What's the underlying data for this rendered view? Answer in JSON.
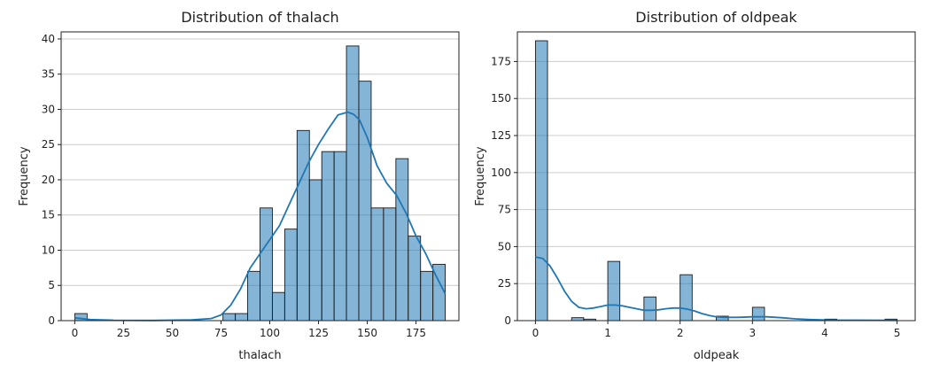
{
  "chart_data": [
    {
      "type": "bar",
      "title": "Distribution of thalach",
      "xlabel": "thalach",
      "ylabel": "Frequency",
      "xlim": [
        -7,
        197
      ],
      "ylim": [
        0,
        41
      ],
      "xticks": [
        0,
        25,
        50,
        75,
        100,
        125,
        150,
        175
      ],
      "yticks": [
        0,
        5,
        10,
        15,
        20,
        25,
        30,
        35,
        40
      ],
      "grid": "horizontal",
      "bin_edges": [
        0,
        6.33,
        12.67,
        19,
        25.33,
        31.67,
        38,
        44.33,
        50.67,
        57,
        63.33,
        69.67,
        76,
        82.33,
        88.67,
        95,
        101.33,
        107.67,
        114,
        120.33,
        126.67,
        133,
        139.33,
        145.67,
        152,
        158.33,
        164.67,
        171,
        177.33,
        183.67,
        190
      ],
      "values": [
        1,
        0,
        0,
        0,
        0,
        0,
        0,
        0,
        0,
        0,
        0,
        0,
        1,
        1,
        7,
        16,
        4,
        13,
        27,
        20,
        24,
        24,
        39,
        34,
        16,
        16,
        23,
        12,
        7,
        8
      ],
      "kde": {
        "x": [
          0,
          8,
          20,
          40,
          60,
          70,
          75,
          80,
          85,
          90,
          95,
          100,
          105,
          110,
          115,
          120,
          125,
          130,
          135,
          140,
          143,
          146,
          150,
          155,
          160,
          165,
          170,
          175,
          180,
          185,
          190
        ],
        "y": [
          0.4,
          0.15,
          0.05,
          0.03,
          0.1,
          0.3,
          0.8,
          2.2,
          4.5,
          7.5,
          9.5,
          11.5,
          13.5,
          16.5,
          19.5,
          22.5,
          25,
          27.2,
          29.2,
          29.6,
          29.3,
          28.5,
          26,
          22,
          19.5,
          17.8,
          15.2,
          12,
          9.5,
          6.5,
          3.8
        ]
      },
      "bar_color": "#1f77b4",
      "line_color": "#1f77b4"
    },
    {
      "type": "bar",
      "title": "Distribution of oldpeak",
      "xlabel": "oldpeak",
      "ylabel": "Frequency",
      "xlim": [
        -0.25,
        5.25
      ],
      "ylim": [
        0,
        195
      ],
      "xticks": [
        0,
        1,
        2,
        3,
        4,
        5
      ],
      "yticks": [
        0,
        25,
        50,
        75,
        100,
        125,
        150,
        175
      ],
      "grid": "horizontal",
      "bin_edges": [
        0,
        0.1667,
        0.3333,
        0.5,
        0.6667,
        0.8333,
        1,
        1.1667,
        1.3333,
        1.5,
        1.6667,
        1.8333,
        2,
        2.1667,
        2.3333,
        2.5,
        2.6667,
        2.8333,
        3,
        3.1667,
        3.3333,
        3.5,
        3.6667,
        3.8333,
        4,
        4.1667,
        4.3333,
        4.5,
        4.6667,
        4.8333,
        5
      ],
      "values": [
        189,
        0,
        0,
        2,
        1,
        0,
        40,
        0,
        0,
        16,
        0,
        0,
        31,
        0,
        0,
        3,
        0,
        0,
        9,
        0,
        0,
        0,
        0,
        0,
        1,
        0,
        0,
        0,
        0,
        1
      ],
      "kde": {
        "x": [
          0,
          0.1,
          0.2,
          0.3,
          0.4,
          0.5,
          0.6,
          0.7,
          0.8,
          0.9,
          1.0,
          1.1,
          1.2,
          1.3,
          1.4,
          1.5,
          1.6,
          1.7,
          1.8,
          1.9,
          2.0,
          2.1,
          2.2,
          2.3,
          2.4,
          2.5,
          2.6,
          2.8,
          3.0,
          3.2,
          3.4,
          3.6,
          3.8,
          4.0,
          4.2,
          4.5,
          4.8,
          5.0
        ],
        "y": [
          43,
          42,
          37,
          29,
          20,
          13,
          9,
          8,
          8.5,
          9.5,
          10.5,
          10.5,
          10,
          9,
          8,
          7,
          7,
          7.3,
          8,
          8.5,
          8.5,
          7.8,
          6.5,
          4.8,
          3.5,
          2.6,
          2.2,
          2.2,
          2.6,
          2.6,
          2.0,
          1.2,
          0.7,
          0.4,
          0.3,
          0.3,
          0.25,
          0.2
        ]
      },
      "bar_color": "#1f77b4",
      "line_color": "#1f77b4"
    }
  ]
}
